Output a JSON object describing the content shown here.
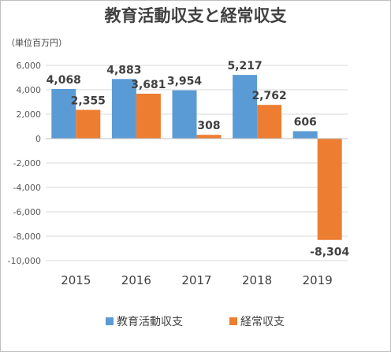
{
  "chart_data": {
    "type": "bar",
    "title": "教育活動収支と経常収支",
    "unit_label": "（単位百万円）",
    "categories": [
      "2015",
      "2016",
      "2017",
      "2018",
      "2019"
    ],
    "series": [
      {
        "name": "教育活動収支",
        "color": "#5B9BD5",
        "values": [
          4068,
          4883,
          3954,
          5217,
          606
        ],
        "labels": [
          "4,068",
          "4,883",
          "3,954",
          "5,217",
          "606"
        ]
      },
      {
        "name": "経常収支",
        "color": "#ED7D31",
        "values": [
          2355,
          3681,
          308,
          2762,
          -8304
        ],
        "labels": [
          "2,355",
          "3,681",
          "308",
          "2,762",
          "-8,304"
        ]
      }
    ],
    "ylim": [
      -10000,
      6000
    ],
    "yticks": [
      6000,
      4000,
      2000,
      0,
      -2000,
      -4000,
      -6000,
      -8000,
      -10000
    ],
    "ytick_labels": [
      "6,000",
      "4,000",
      "2,000",
      "0",
      "-2,000",
      "-4,000",
      "-6,000",
      "-8,000",
      "-10,000"
    ],
    "grid": true,
    "legend_position": "bottom"
  }
}
